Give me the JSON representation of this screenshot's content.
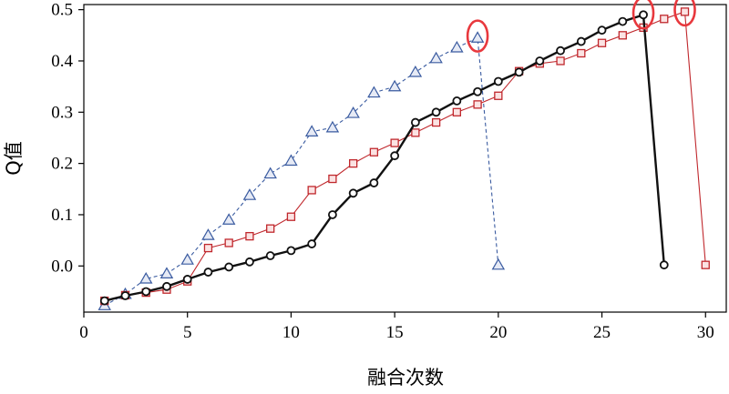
{
  "chart_data": {
    "type": "line",
    "xlabel": "融合次数",
    "ylabel": "Q值",
    "xlim": [
      0,
      31
    ],
    "ylim": [
      -0.09,
      0.51
    ],
    "xticks": [
      0,
      5,
      10,
      15,
      20,
      25,
      30
    ],
    "yticks": [
      0.0,
      0.1,
      0.2,
      0.3,
      0.4,
      0.5
    ],
    "xtick_labels": [
      "0",
      "5",
      "10",
      "15",
      "20",
      "25",
      "30"
    ],
    "ytick_labels": [
      "0.0",
      "0.1",
      "0.2",
      "0.3",
      "0.4",
      "0.5"
    ],
    "grid": false,
    "legend": "none",
    "series": [
      {
        "marker": "triangle",
        "color": "#3a5ba0",
        "line_style": "dashed",
        "x": [
          1,
          2,
          3,
          4,
          5,
          6,
          7,
          8,
          9,
          10,
          11,
          12,
          13,
          14,
          15,
          16,
          17,
          18,
          19,
          20
        ],
        "y": [
          -0.077,
          -0.055,
          -0.025,
          -0.015,
          0.012,
          0.06,
          0.09,
          0.138,
          0.18,
          0.205,
          0.262,
          0.27,
          0.298,
          0.338,
          0.35,
          0.378,
          0.405,
          0.426,
          0.445,
          0.002
        ],
        "highlight_x": 19
      },
      {
        "marker": "square",
        "color": "#c0282d",
        "line_style": "solid-thin",
        "x": [
          1,
          2,
          3,
          4,
          5,
          6,
          7,
          8,
          9,
          10,
          11,
          12,
          13,
          14,
          15,
          16,
          17,
          18,
          19,
          20,
          21,
          22,
          23,
          24,
          25,
          26,
          27,
          28,
          29,
          30
        ],
        "y": [
          -0.068,
          -0.057,
          -0.052,
          -0.046,
          -0.03,
          0.035,
          0.045,
          0.058,
          0.073,
          0.096,
          0.148,
          0.17,
          0.2,
          0.222,
          0.24,
          0.26,
          0.28,
          0.3,
          0.315,
          0.332,
          0.38,
          0.395,
          0.4,
          0.415,
          0.435,
          0.45,
          0.465,
          0.482,
          0.496,
          0.002
        ],
        "highlight_x": 29
      },
      {
        "marker": "circle",
        "color": "#111111",
        "line_style": "solid-thick",
        "x": [
          1,
          2,
          3,
          4,
          5,
          6,
          7,
          8,
          9,
          10,
          11,
          12,
          13,
          14,
          15,
          16,
          17,
          18,
          19,
          20,
          21,
          22,
          23,
          24,
          25,
          26,
          27,
          28
        ],
        "y": [
          -0.068,
          -0.058,
          -0.05,
          -0.04,
          -0.026,
          -0.012,
          -0.002,
          0.008,
          0.02,
          0.03,
          0.043,
          0.1,
          0.142,
          0.162,
          0.215,
          0.28,
          0.3,
          0.322,
          0.34,
          0.36,
          0.378,
          0.4,
          0.42,
          0.438,
          0.46,
          0.477,
          0.49,
          0.002
        ],
        "highlight_x": 27
      }
    ],
    "highlight_color": "#e8383d"
  }
}
